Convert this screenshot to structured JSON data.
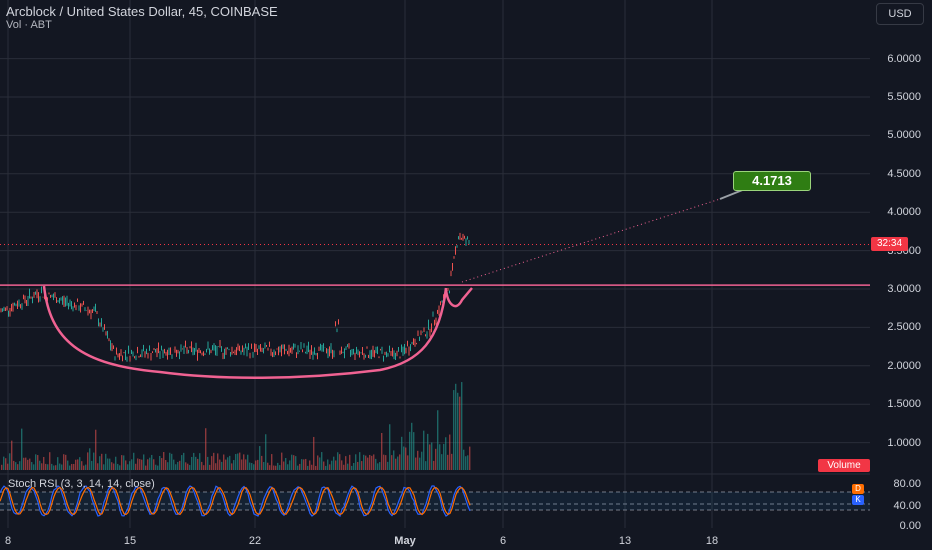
{
  "header": {
    "title": "Arcblock / United States Dollar, 45, COINBASE",
    "subtitle": "Vol · ABT"
  },
  "toolbar": {
    "currency_label": "USD"
  },
  "price_axis": {
    "labels": [
      {
        "value": 6.0,
        "text": "6.0000"
      },
      {
        "value": 5.5,
        "text": "5.5000"
      },
      {
        "value": 5.0,
        "text": "5.0000"
      },
      {
        "value": 4.5,
        "text": "4.5000"
      },
      {
        "value": 4.0,
        "text": "4.0000"
      },
      {
        "value": 3.5,
        "text": "3.5000"
      },
      {
        "value": 3.0,
        "text": "3.0000"
      },
      {
        "value": 2.5,
        "text": "2.5000"
      },
      {
        "value": 2.0,
        "text": "2.0000"
      },
      {
        "value": 1.5,
        "text": "1.5000"
      },
      {
        "value": 1.0,
        "text": "1.0000"
      }
    ],
    "countdown_badge": "32:34",
    "volume_badge": "Volume"
  },
  "time_axis": {
    "labels": [
      "8",
      "15",
      "22",
      "May",
      "6",
      "13",
      "18"
    ]
  },
  "annotations": {
    "target_label": "4.1713",
    "resistance_level": 3.05,
    "current_price": 3.58
  },
  "indicator": {
    "title": "Stoch RSI (3, 3, 14, 14, close)",
    "labels": [
      "80.00",
      "40.00",
      "0.00"
    ],
    "d_badge": "D",
    "k_badge": "K",
    "d_color": "#ff6d00",
    "k_color": "#2962ff"
  },
  "colors": {
    "background": "#131722",
    "grid": "#2a2e39",
    "price_line": "#b2b5be",
    "annotation": "#f06292",
    "down": "#ef5350",
    "up": "#26a69a"
  }
}
